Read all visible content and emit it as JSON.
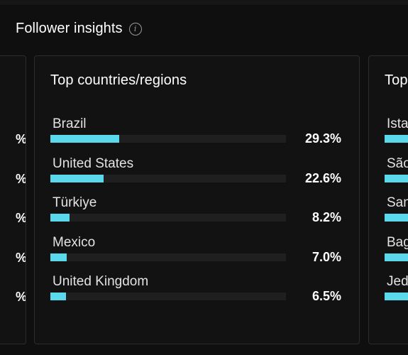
{
  "header": {
    "title": "Follower insights",
    "info_icon": "info-icon"
  },
  "left_card": {
    "pcts": [
      "%",
      "%",
      "%",
      "%",
      "%"
    ]
  },
  "main_card": {
    "title": "Top countries/regions",
    "rows": [
      {
        "label": "Brazil",
        "value": "29.3%",
        "fraction": 0.293
      },
      {
        "label": "United States",
        "value": "22.6%",
        "fraction": 0.226
      },
      {
        "label": "Türkiye",
        "value": "8.2%",
        "fraction": 0.082
      },
      {
        "label": "Mexico",
        "value": "7.0%",
        "fraction": 0.07
      },
      {
        "label": "United Kingdom",
        "value": "6.5%",
        "fraction": 0.065
      }
    ]
  },
  "right_card": {
    "title": "Top",
    "rows": [
      {
        "label": "Ista"
      },
      {
        "label": "São"
      },
      {
        "label": "San"
      },
      {
        "label": "Bag"
      },
      {
        "label": "Jed"
      }
    ]
  },
  "colors": {
    "accent": "#5ad8ec",
    "background": "#0f0f0f",
    "card": "#121212",
    "track": "#1f1f1f"
  }
}
